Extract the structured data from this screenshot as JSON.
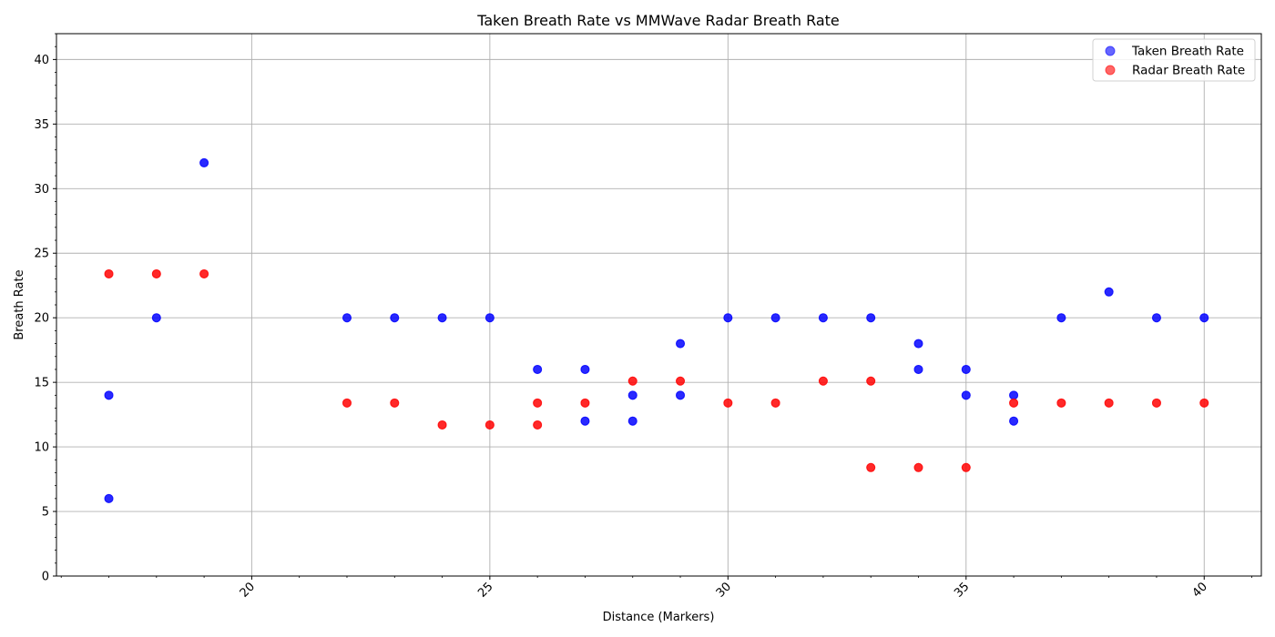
{
  "chart_data": {
    "type": "scatter",
    "title": "Taken Breath Rate vs MMWave Radar Breath Rate",
    "xlabel": "Distance (Markers)",
    "ylabel": "Breath Rate",
    "xlim": [
      15.9,
      41.2
    ],
    "ylim": [
      0,
      42
    ],
    "xticks": [
      20,
      25,
      30,
      35,
      40
    ],
    "yticks": [
      0,
      5,
      10,
      15,
      20,
      25,
      30,
      35,
      40
    ],
    "grid": true,
    "legend": "top-right",
    "series": [
      {
        "name": "Taken Breath Rate",
        "color": "#0000ff",
        "points": [
          [
            17,
            14
          ],
          [
            17,
            6
          ],
          [
            18,
            20
          ],
          [
            19,
            32
          ],
          [
            22,
            20
          ],
          [
            23,
            20
          ],
          [
            24,
            20
          ],
          [
            25,
            20
          ],
          [
            26,
            16
          ],
          [
            27,
            16
          ],
          [
            27,
            12
          ],
          [
            28,
            14
          ],
          [
            28,
            12
          ],
          [
            29,
            18
          ],
          [
            29,
            14
          ],
          [
            30,
            20
          ],
          [
            31,
            20
          ],
          [
            32,
            20
          ],
          [
            33,
            20
          ],
          [
            34,
            18
          ],
          [
            34,
            16
          ],
          [
            35,
            16
          ],
          [
            35,
            14
          ],
          [
            36,
            14
          ],
          [
            36,
            12
          ],
          [
            37,
            20
          ],
          [
            38,
            22
          ],
          [
            39,
            20
          ],
          [
            40,
            20
          ]
        ]
      },
      {
        "name": "Radar Breath Rate",
        "color": "#ff0000",
        "points": [
          [
            17,
            23.4
          ],
          [
            18,
            23.4
          ],
          [
            19,
            23.4
          ],
          [
            22,
            13.4
          ],
          [
            23,
            13.4
          ],
          [
            24,
            11.7
          ],
          [
            25,
            11.7
          ],
          [
            26,
            13.4
          ],
          [
            26,
            11.7
          ],
          [
            27,
            13.4
          ],
          [
            28,
            15.1
          ],
          [
            29,
            15.1
          ],
          [
            30,
            13.4
          ],
          [
            31,
            13.4
          ],
          [
            32,
            15.1
          ],
          [
            33,
            15.1
          ],
          [
            33,
            8.4
          ],
          [
            34,
            8.4
          ],
          [
            35,
            8.4
          ],
          [
            36,
            13.4
          ],
          [
            37,
            13.4
          ],
          [
            38,
            13.4
          ],
          [
            39,
            13.4
          ],
          [
            40,
            13.4
          ]
        ]
      }
    ]
  }
}
